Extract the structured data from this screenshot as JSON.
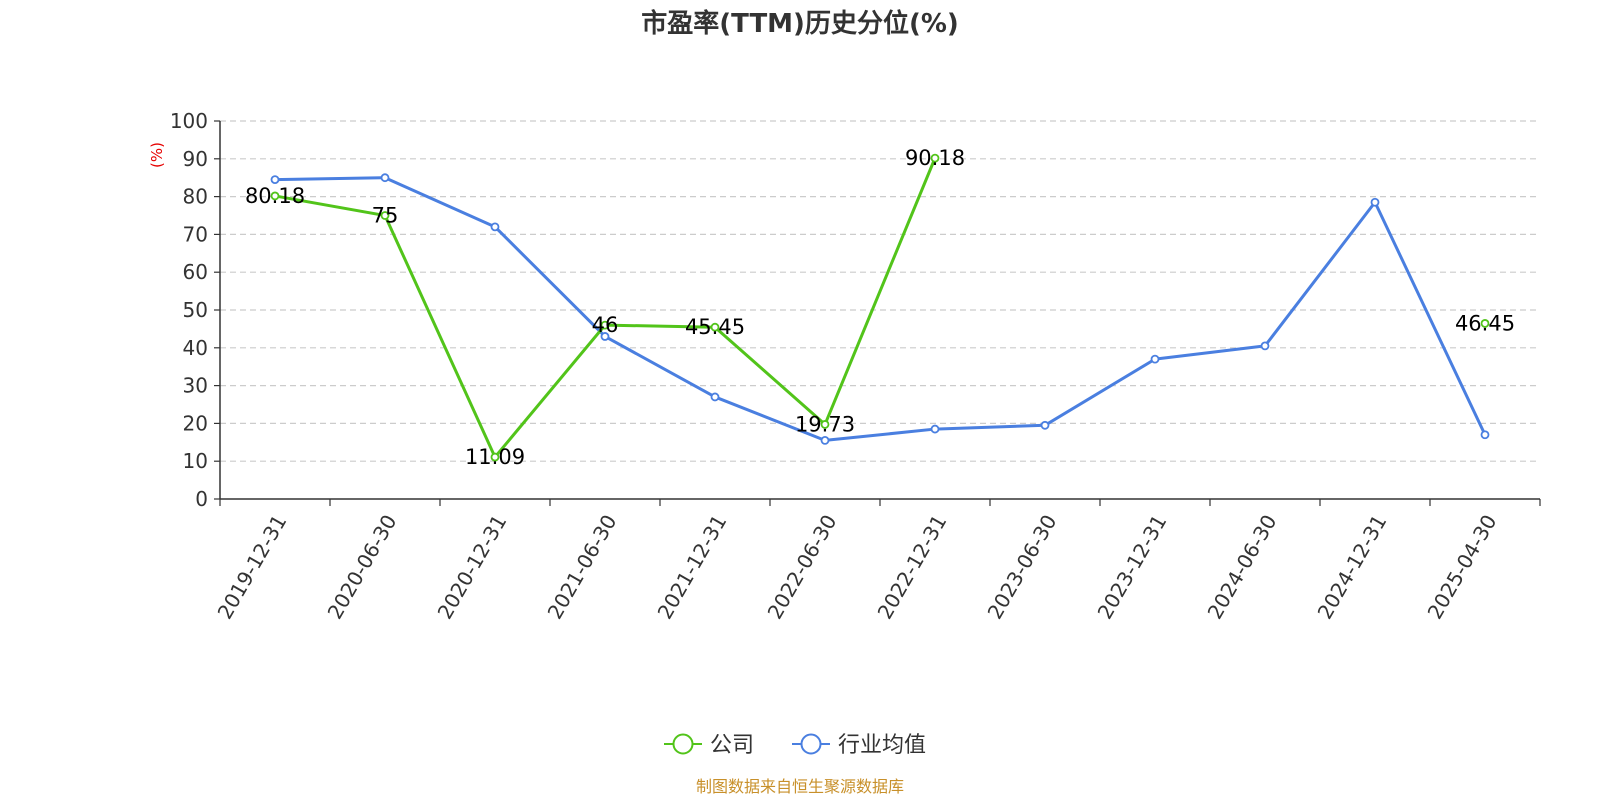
{
  "chart_data": {
    "type": "line",
    "title": "市盈率(TTM)历史分位(%)",
    "ylabel": "(%)",
    "ylim": [
      0,
      100
    ],
    "yticks": [
      0,
      10,
      20,
      30,
      40,
      50,
      60,
      70,
      80,
      90,
      100
    ],
    "categories": [
      "2019-12-31",
      "2020-06-30",
      "2020-12-31",
      "2021-06-30",
      "2021-12-31",
      "2022-06-30",
      "2022-12-31",
      "2023-06-30",
      "2023-12-31",
      "2024-06-30",
      "2024-12-31",
      "2025-04-30"
    ],
    "grid": true,
    "legend_position": "bottom",
    "series": [
      {
        "name": "公司",
        "color": "#52c41a",
        "values": [
          80.18,
          75,
          11.09,
          46,
          45.45,
          19.73,
          90.18,
          null,
          null,
          null,
          null,
          46.45
        ],
        "labels": [
          "80.18",
          "75",
          "11.09",
          "46",
          "45.45",
          "19.73",
          "90.18",
          null,
          null,
          null,
          null,
          "46.45"
        ]
      },
      {
        "name": "行业均值",
        "color": "#4a7fe0",
        "values": [
          84.5,
          85,
          72,
          43,
          27,
          15.5,
          18.5,
          19.5,
          37,
          40.5,
          78.5,
          17
        ]
      }
    ]
  },
  "footer": {
    "source": "制图数据来自恒生聚源数据库",
    "source_color": "#c8902a"
  }
}
